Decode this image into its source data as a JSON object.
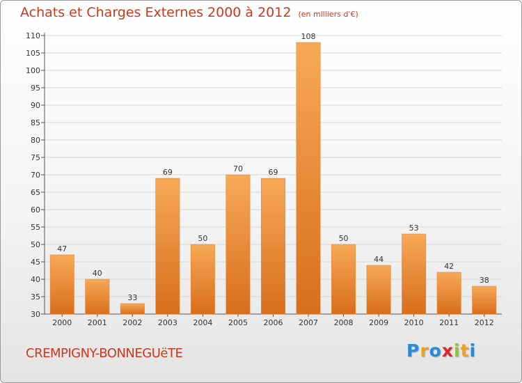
{
  "chart_data": {
    "type": "bar",
    "title": "Achats et Charges Externes 2000 à 2012",
    "subtitle": "(en milliers d'€)",
    "categories": [
      "2000",
      "2001",
      "2002",
      "2003",
      "2004",
      "2005",
      "2006",
      "2007",
      "2008",
      "2009",
      "2010",
      "2011",
      "2012"
    ],
    "values": [
      47,
      40,
      33,
      69,
      50,
      70,
      69,
      108,
      50,
      44,
      53,
      42,
      38
    ],
    "ylim": [
      30,
      110
    ],
    "yticks": [
      30,
      35,
      40,
      45,
      50,
      55,
      60,
      65,
      70,
      75,
      80,
      85,
      90,
      95,
      100,
      105,
      110
    ],
    "grid": true,
    "bar_color": "#f0923c"
  },
  "footer": {
    "town": "CREMPIGNY-BONNEGUëTE",
    "logo_letters": [
      "P",
      "r",
      "o",
      "x",
      "i",
      "t",
      "i"
    ]
  },
  "colors": {
    "title": "#c8391f",
    "bar_light": "#f7a957",
    "bar_dark": "#d86e1c",
    "grid": "#d5d5d5",
    "logo": [
      "#2a8ad4",
      "#f0a020",
      "#2a8ad4",
      "#d8262b",
      "#8cc43c",
      "#f0a020",
      "#2a8ad4"
    ]
  }
}
